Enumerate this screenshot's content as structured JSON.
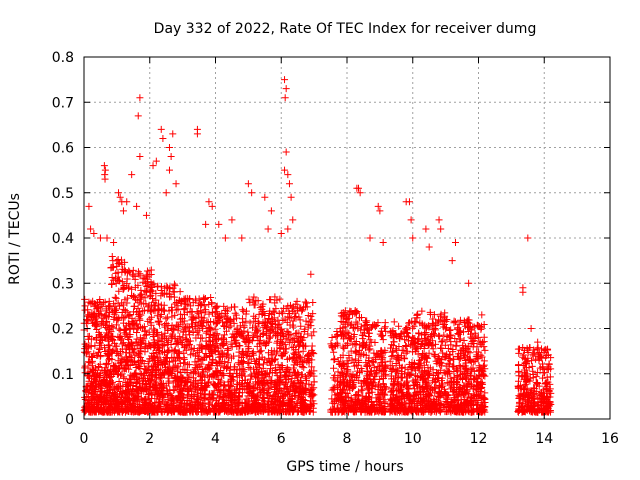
{
  "chart_data": {
    "type": "scatter",
    "title": "Day 332 of 2022, Rate Of TEC Index for receiver dumg",
    "xlabel": "GPS time / hours",
    "ylabel": "ROTI / TECUs",
    "xlim": [
      0,
      16
    ],
    "ylim": [
      0,
      0.8
    ],
    "xticks": [
      0,
      2,
      4,
      6,
      8,
      10,
      12,
      14,
      16
    ],
    "yticks": [
      0,
      0.1,
      0.2,
      0.3,
      0.4,
      0.5,
      0.6,
      0.7,
      0.8
    ],
    "grid": true,
    "marker": "+",
    "marker_color": "#ff0000",
    "density_bands": [
      {
        "x": [
          0.0,
          0.8
        ],
        "base_max": 0.27,
        "n": 420
      },
      {
        "x": [
          0.8,
          1.3
        ],
        "base_max": 0.36,
        "n": 260
      },
      {
        "x": [
          1.3,
          2.1
        ],
        "base_max": 0.33,
        "n": 430
      },
      {
        "x": [
          2.1,
          3.0
        ],
        "base_max": 0.3,
        "n": 420
      },
      {
        "x": [
          3.0,
          4.0
        ],
        "base_max": 0.27,
        "n": 400
      },
      {
        "x": [
          4.0,
          5.0
        ],
        "base_max": 0.25,
        "n": 400
      },
      {
        "x": [
          5.0,
          6.0
        ],
        "base_max": 0.27,
        "n": 420
      },
      {
        "x": [
          6.0,
          7.0
        ],
        "base_max": 0.26,
        "n": 380
      },
      {
        "x": [
          7.5,
          7.8
        ],
        "base_max": 0.2,
        "n": 70
      },
      {
        "x": [
          7.8,
          8.5
        ],
        "base_max": 0.24,
        "n": 260
      },
      {
        "x": [
          8.5,
          9.2
        ],
        "base_max": 0.22,
        "n": 250
      },
      {
        "x": [
          9.3,
          10.1
        ],
        "base_max": 0.22,
        "n": 300
      },
      {
        "x": [
          10.1,
          11.0
        ],
        "base_max": 0.24,
        "n": 330
      },
      {
        "x": [
          11.0,
          11.8
        ],
        "base_max": 0.22,
        "n": 300
      },
      {
        "x": [
          11.8,
          12.2
        ],
        "base_max": 0.21,
        "n": 150
      },
      {
        "x": [
          13.2,
          14.2
        ],
        "base_max": 0.16,
        "n": 300
      }
    ],
    "outliers": [
      {
        "x": 0.15,
        "y": 0.47
      },
      {
        "x": 0.2,
        "y": 0.42
      },
      {
        "x": 0.3,
        "y": 0.41
      },
      {
        "x": 0.5,
        "y": 0.4
      },
      {
        "x": 0.62,
        "y": 0.56
      },
      {
        "x": 0.65,
        "y": 0.55
      },
      {
        "x": 0.63,
        "y": 0.54
      },
      {
        "x": 0.64,
        "y": 0.53
      },
      {
        "x": 0.7,
        "y": 0.4
      },
      {
        "x": 0.9,
        "y": 0.39
      },
      {
        "x": 1.05,
        "y": 0.5
      },
      {
        "x": 1.1,
        "y": 0.49
      },
      {
        "x": 1.15,
        "y": 0.48
      },
      {
        "x": 1.2,
        "y": 0.46
      },
      {
        "x": 1.3,
        "y": 0.48
      },
      {
        "x": 1.45,
        "y": 0.54
      },
      {
        "x": 1.7,
        "y": 0.71
      },
      {
        "x": 1.65,
        "y": 0.67
      },
      {
        "x": 1.7,
        "y": 0.58
      },
      {
        "x": 1.6,
        "y": 0.47
      },
      {
        "x": 1.9,
        "y": 0.45
      },
      {
        "x": 2.1,
        "y": 0.56
      },
      {
        "x": 2.2,
        "y": 0.57
      },
      {
        "x": 2.35,
        "y": 0.64
      },
      {
        "x": 2.4,
        "y": 0.62
      },
      {
        "x": 2.6,
        "y": 0.6
      },
      {
        "x": 2.65,
        "y": 0.58
      },
      {
        "x": 2.7,
        "y": 0.63
      },
      {
        "x": 2.6,
        "y": 0.55
      },
      {
        "x": 2.8,
        "y": 0.52
      },
      {
        "x": 2.5,
        "y": 0.5
      },
      {
        "x": 3.45,
        "y": 0.64
      },
      {
        "x": 3.45,
        "y": 0.63
      },
      {
        "x": 3.8,
        "y": 0.48
      },
      {
        "x": 3.9,
        "y": 0.47
      },
      {
        "x": 3.7,
        "y": 0.43
      },
      {
        "x": 4.1,
        "y": 0.43
      },
      {
        "x": 4.3,
        "y": 0.4
      },
      {
        "x": 4.5,
        "y": 0.44
      },
      {
        "x": 5.0,
        "y": 0.52
      },
      {
        "x": 5.1,
        "y": 0.5
      },
      {
        "x": 4.8,
        "y": 0.4
      },
      {
        "x": 5.5,
        "y": 0.49
      },
      {
        "x": 5.7,
        "y": 0.46
      },
      {
        "x": 5.6,
        "y": 0.42
      },
      {
        "x": 6.1,
        "y": 0.75
      },
      {
        "x": 6.15,
        "y": 0.73
      },
      {
        "x": 6.12,
        "y": 0.71
      },
      {
        "x": 6.15,
        "y": 0.59
      },
      {
        "x": 6.1,
        "y": 0.55
      },
      {
        "x": 6.2,
        "y": 0.54
      },
      {
        "x": 6.25,
        "y": 0.52
      },
      {
        "x": 6.3,
        "y": 0.49
      },
      {
        "x": 6.35,
        "y": 0.44
      },
      {
        "x": 6.2,
        "y": 0.42
      },
      {
        "x": 6.0,
        "y": 0.41
      },
      {
        "x": 6.9,
        "y": 0.32
      },
      {
        "x": 8.3,
        "y": 0.51
      },
      {
        "x": 8.35,
        "y": 0.51
      },
      {
        "x": 8.4,
        "y": 0.5
      },
      {
        "x": 8.7,
        "y": 0.4
      },
      {
        "x": 8.95,
        "y": 0.47
      },
      {
        "x": 9.0,
        "y": 0.46
      },
      {
        "x": 9.1,
        "y": 0.39
      },
      {
        "x": 9.8,
        "y": 0.48
      },
      {
        "x": 9.9,
        "y": 0.48
      },
      {
        "x": 9.95,
        "y": 0.44
      },
      {
        "x": 10.0,
        "y": 0.4
      },
      {
        "x": 10.4,
        "y": 0.42
      },
      {
        "x": 10.5,
        "y": 0.38
      },
      {
        "x": 10.8,
        "y": 0.44
      },
      {
        "x": 10.85,
        "y": 0.42
      },
      {
        "x": 11.3,
        "y": 0.39
      },
      {
        "x": 11.2,
        "y": 0.35
      },
      {
        "x": 11.7,
        "y": 0.3
      },
      {
        "x": 12.1,
        "y": 0.23
      },
      {
        "x": 13.35,
        "y": 0.29
      },
      {
        "x": 13.35,
        "y": 0.28
      },
      {
        "x": 13.5,
        "y": 0.4
      },
      {
        "x": 13.6,
        "y": 0.2
      },
      {
        "x": 13.8,
        "y": 0.17
      }
    ]
  }
}
